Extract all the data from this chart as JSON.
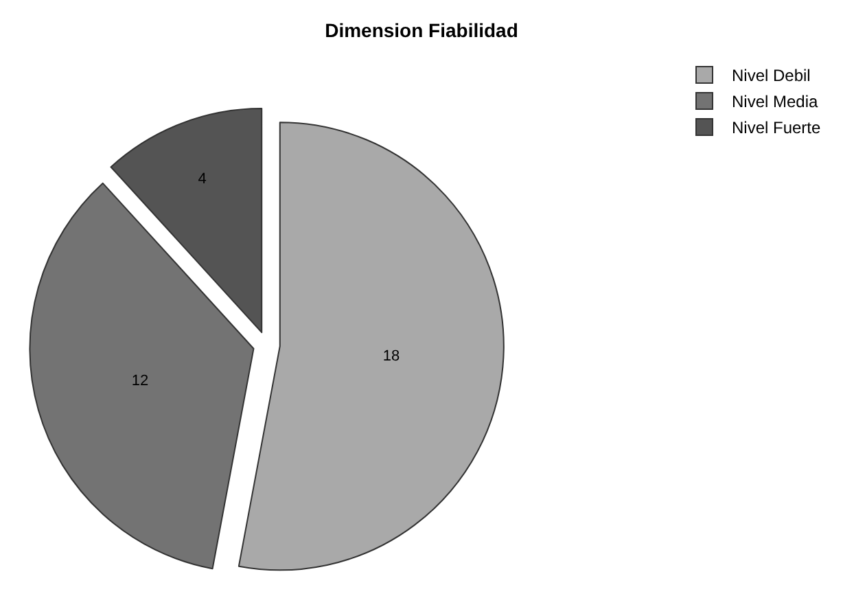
{
  "chart_data": {
    "type": "pie",
    "title": "Dimension Fiabilidad",
    "categories": [
      "Nivel Debil",
      "Nivel Media",
      "Nivel Fuerte"
    ],
    "values": [
      18,
      12,
      4
    ],
    "colors": [
      "#a9a9a9",
      "#737373",
      "#545454"
    ],
    "data_labels": true,
    "legend": "top right"
  }
}
